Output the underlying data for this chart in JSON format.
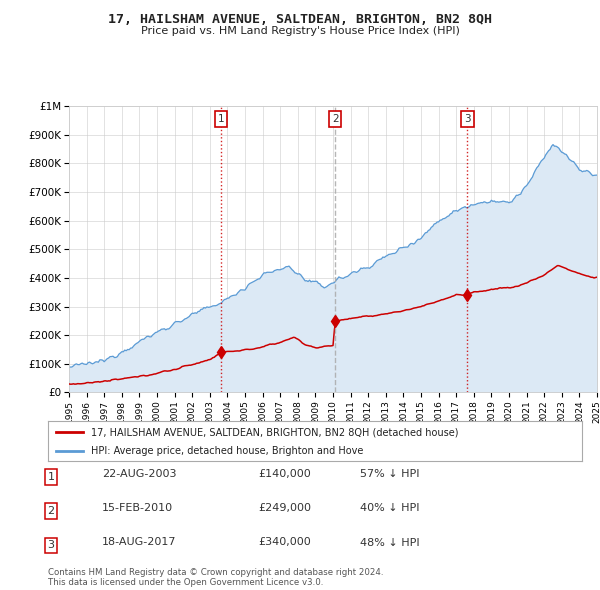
{
  "title": "17, HAILSHAM AVENUE, SALTDEAN, BRIGHTON, BN2 8QH",
  "subtitle": "Price paid vs. HM Land Registry's House Price Index (HPI)",
  "xlim": [
    1995,
    2025
  ],
  "ylim": [
    0,
    1000000
  ],
  "yticks": [
    0,
    100000,
    200000,
    300000,
    400000,
    500000,
    600000,
    700000,
    800000,
    900000,
    1000000
  ],
  "ytick_labels": [
    "£0",
    "£100K",
    "£200K",
    "£300K",
    "£400K",
    "£500K",
    "£600K",
    "£700K",
    "£800K",
    "£900K",
    "£1M"
  ],
  "hpi_color": "#5b9bd5",
  "hpi_fill_color": "#dce9f5",
  "price_color": "#cc0000",
  "vline_color_red": "#cc0000",
  "vline_color_grey": "#aaaaaa",
  "background_color": "#ffffff",
  "grid_color": "#cccccc",
  "purchases": [
    {
      "year": 2003.646,
      "price": 140000,
      "label": "1",
      "vline": "red"
    },
    {
      "year": 2010.122,
      "price": 249000,
      "label": "2",
      "vline": "grey"
    },
    {
      "year": 2017.635,
      "price": 340000,
      "label": "3",
      "vline": "red"
    }
  ],
  "legend_label_red": "17, HAILSHAM AVENUE, SALTDEAN, BRIGHTON, BN2 8QH (detached house)",
  "legend_label_blue": "HPI: Average price, detached house, Brighton and Hove",
  "table_rows": [
    {
      "num": "1",
      "date": "22-AUG-2003",
      "price": "£140,000",
      "hpi": "57% ↓ HPI"
    },
    {
      "num": "2",
      "date": "15-FEB-2010",
      "price": "£249,000",
      "hpi": "40% ↓ HPI"
    },
    {
      "num": "3",
      "date": "18-AUG-2017",
      "price": "£340,000",
      "hpi": "48% ↓ HPI"
    }
  ],
  "footnote": "Contains HM Land Registry data © Crown copyright and database right 2024.\nThis data is licensed under the Open Government Licence v3.0."
}
